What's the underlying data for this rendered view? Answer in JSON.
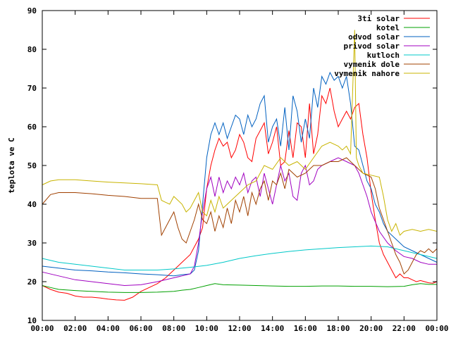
{
  "chart_data": {
    "type": "line",
    "title": "",
    "xlabel": "",
    "ylabel": "teplota ve C",
    "ylim": [
      10,
      90
    ],
    "xlim": [
      0,
      24
    ],
    "grid": false,
    "legend_position": "top-right",
    "x_ticks": [
      "00:00",
      "02:00",
      "04:00",
      "06:00",
      "08:00",
      "10:00",
      "12:00",
      "14:00",
      "16:00",
      "18:00",
      "20:00",
      "22:00",
      "00:00"
    ],
    "y_ticks": [
      10,
      20,
      30,
      40,
      50,
      60,
      70,
      80,
      90
    ],
    "series": [
      {
        "name": "3ti solar",
        "color": "#ff0000",
        "x": [
          0,
          0.5,
          1,
          1.5,
          2,
          2.5,
          3,
          3.5,
          4,
          4.5,
          5,
          5.5,
          6,
          6.5,
          7,
          7.5,
          8,
          8.5,
          9,
          9.25,
          9.5,
          9.75,
          10,
          10.25,
          10.5,
          10.75,
          11,
          11.25,
          11.5,
          11.75,
          12,
          12.25,
          12.5,
          12.75,
          13,
          13.25,
          13.5,
          13.75,
          14,
          14.25,
          14.5,
          14.75,
          15,
          15.25,
          15.5,
          15.75,
          16,
          16.25,
          16.5,
          16.75,
          17,
          17.25,
          17.5,
          17.75,
          18,
          18.25,
          18.5,
          18.75,
          19,
          19.25,
          19.5,
          19.75,
          20,
          20.25,
          20.5,
          20.75,
          21,
          21.25,
          21.5,
          21.75,
          22,
          22.25,
          22.5,
          22.75,
          23,
          23.25,
          23.5,
          23.75,
          24
        ],
        "values": [
          19,
          18,
          17.3,
          17,
          16.3,
          16,
          16,
          15.8,
          15.5,
          15.3,
          15.2,
          16,
          17.5,
          18.5,
          19.5,
          21,
          23,
          25,
          27,
          29,
          31,
          34,
          44,
          50,
          54,
          57,
          55,
          56,
          52,
          54,
          58,
          56,
          52,
          51,
          57,
          59,
          61,
          53,
          56,
          60,
          50,
          51,
          59,
          52,
          61,
          60,
          52,
          66,
          53,
          58,
          68,
          66,
          70,
          64,
          60,
          62,
          64,
          62,
          65,
          66,
          58,
          52,
          43,
          36,
          30,
          27,
          25,
          23,
          21,
          22,
          21,
          21,
          20.5,
          20,
          20.3,
          20,
          19.7,
          19.6,
          20
        ]
      },
      {
        "name": "kotel",
        "color": "#00a000",
        "x": [
          0,
          0.5,
          1,
          2,
          3,
          4,
          5,
          6,
          7,
          8,
          8.5,
          9,
          9.5,
          10,
          10.5,
          11,
          12,
          13,
          14,
          15,
          16,
          17,
          18,
          19,
          20,
          21,
          22,
          22.5,
          23,
          23.5,
          24
        ],
        "values": [
          19,
          18.5,
          18,
          17.7,
          17.5,
          17.3,
          17.2,
          17.2,
          17.3,
          17.5,
          17.8,
          18,
          18.5,
          19,
          19.5,
          19.2,
          19.1,
          19,
          18.9,
          18.8,
          18.8,
          18.9,
          18.9,
          18.8,
          18.8,
          18.7,
          18.8,
          19.2,
          19.5,
          19.3,
          19.3
        ]
      },
      {
        "name": "odvod solar",
        "color": "#0060c0",
        "x": [
          0,
          1,
          2,
          3,
          4,
          5,
          6,
          7,
          8,
          8.5,
          9,
          9.25,
          9.5,
          9.75,
          10,
          10.25,
          10.5,
          10.75,
          11,
          11.25,
          11.5,
          11.75,
          12,
          12.25,
          12.5,
          12.75,
          13,
          13.25,
          13.5,
          13.75,
          14,
          14.25,
          14.5,
          14.75,
          15,
          15.25,
          15.5,
          15.75,
          16,
          16.25,
          16.5,
          16.75,
          17,
          17.25,
          17.5,
          17.75,
          18,
          18.25,
          18.5,
          18.75,
          19,
          19.25,
          19.5,
          19.75,
          20,
          20.25,
          20.5,
          20.75,
          21,
          21.5,
          22,
          22.5,
          23,
          23.5,
          24
        ],
        "values": [
          24,
          23.5,
          23,
          22.8,
          22.5,
          22.3,
          22,
          21.8,
          21.5,
          21.8,
          22,
          23,
          28,
          40,
          52,
          58,
          61,
          58,
          61,
          57,
          60,
          63,
          62,
          58,
          63,
          60,
          62,
          66,
          68,
          56,
          60,
          62,
          55,
          65,
          54,
          68,
          64,
          56,
          62,
          57,
          70,
          65,
          73,
          71,
          74,
          72,
          73,
          70,
          73,
          66,
          55,
          54,
          50,
          46,
          44,
          40,
          38,
          35,
          33,
          31,
          29,
          28,
          27,
          26,
          25
        ]
      },
      {
        "name": "privod solar",
        "color": "#a000c0",
        "x": [
          0,
          1,
          2,
          3,
          4,
          5,
          6,
          7,
          8,
          8.5,
          9,
          9.25,
          9.5,
          9.75,
          10,
          10.25,
          10.5,
          10.75,
          11,
          11.25,
          11.5,
          11.75,
          12,
          12.25,
          12.5,
          12.75,
          13,
          13.25,
          13.5,
          13.75,
          14,
          14.25,
          14.5,
          14.75,
          15,
          15.25,
          15.5,
          15.75,
          16,
          16.25,
          16.5,
          16.75,
          17,
          17.5,
          18,
          18.5,
          19,
          19.25,
          19.5,
          19.75,
          20,
          20.5,
          21,
          21.5,
          22,
          22.5,
          23,
          23.5,
          24
        ],
        "values": [
          22.5,
          21.5,
          20.5,
          20,
          19.5,
          19,
          19.2,
          20,
          21,
          21.5,
          22,
          24,
          30,
          38,
          44,
          47,
          42,
          47,
          43,
          46,
          44,
          47,
          45,
          48,
          43,
          46,
          47,
          42,
          48,
          44,
          40,
          45,
          50,
          46,
          48,
          42,
          41,
          48,
          50,
          45,
          46,
          49,
          50,
          51,
          52,
          51,
          50,
          48,
          45,
          42,
          38,
          33,
          30,
          28,
          26.5,
          26,
          25,
          24.5,
          24.5
        ]
      },
      {
        "name": "kutloch",
        "color": "#00c8c8",
        "x": [
          0,
          1,
          2,
          3,
          4,
          5,
          6,
          7,
          8,
          9,
          10,
          11,
          12,
          13,
          14,
          15,
          16,
          17,
          18,
          19,
          20,
          21,
          22,
          23,
          24
        ],
        "values": [
          26,
          25,
          24.5,
          24,
          23.5,
          23,
          23,
          23,
          23.3,
          23.7,
          24.2,
          25,
          26,
          26.7,
          27.3,
          27.8,
          28.2,
          28.5,
          28.8,
          29,
          29.2,
          29,
          28,
          27,
          26
        ]
      },
      {
        "name": "vymenik dole",
        "color": "#a04000",
        "x": [
          0,
          0.5,
          1,
          2,
          3,
          4,
          5,
          6,
          6.5,
          7,
          7.25,
          7.5,
          7.75,
          8,
          8.25,
          8.5,
          8.75,
          9,
          9.25,
          9.5,
          9.75,
          10,
          10.25,
          10.5,
          10.75,
          11,
          11.25,
          11.5,
          11.75,
          12,
          12.25,
          12.5,
          12.75,
          13,
          13.25,
          13.5,
          13.75,
          14,
          14.25,
          14.5,
          14.75,
          15,
          15.5,
          16,
          16.5,
          17,
          17.5,
          18,
          18.5,
          19,
          19.5,
          20,
          20.25,
          20.5,
          20.75,
          21,
          21.25,
          21.5,
          21.75,
          22,
          22.25,
          22.5,
          22.75,
          23,
          23.25,
          23.5,
          23.75,
          24
        ],
        "values": [
          40,
          42.5,
          43,
          43,
          42.7,
          42.3,
          42,
          41.5,
          41.5,
          41.5,
          32,
          34,
          36,
          38,
          34,
          31,
          30,
          33,
          36,
          40,
          36,
          35,
          38,
          33,
          37,
          34,
          39,
          35,
          41,
          38,
          42,
          37,
          43,
          40,
          44,
          46,
          41,
          46,
          45,
          48,
          44,
          49,
          47,
          48,
          50,
          50,
          51,
          51,
          52,
          50,
          48,
          47,
          44,
          39,
          36,
          33,
          30,
          27,
          25,
          22,
          23,
          25,
          27,
          28,
          27.5,
          28.5,
          27.5,
          28.5
        ]
      },
      {
        "name": "vymenik nahore",
        "color": "#c8b400",
        "x": [
          0,
          0.5,
          1,
          2,
          3,
          4,
          5,
          6,
          7,
          7.25,
          7.5,
          7.75,
          8,
          8.25,
          8.5,
          8.75,
          9,
          9.25,
          9.5,
          9.75,
          10,
          10.25,
          10.5,
          10.75,
          11,
          11.5,
          12,
          12.5,
          13,
          13.5,
          14,
          14.5,
          15,
          15.5,
          16,
          16.5,
          17,
          17.5,
          18,
          18.25,
          18.5,
          18.75,
          19,
          19.1,
          19.25,
          19.5,
          20,
          20.5,
          20.75,
          21,
          21.25,
          21.5,
          21.75,
          22,
          22.5,
          23,
          23.5,
          24
        ],
        "values": [
          45,
          46,
          46.3,
          46.3,
          46,
          45.7,
          45.5,
          45.3,
          45,
          41,
          40.5,
          40,
          42,
          41,
          40,
          38,
          39,
          41,
          43,
          38,
          37,
          41,
          38,
          42,
          39,
          41,
          43,
          45,
          46,
          50,
          49,
          52,
          50,
          51,
          49,
          52,
          55,
          56,
          55,
          54,
          55,
          53,
          85,
          52,
          50,
          48,
          47.5,
          47,
          42,
          36,
          33,
          35,
          32,
          33,
          33.5,
          33,
          33.5,
          33
        ]
      }
    ]
  }
}
